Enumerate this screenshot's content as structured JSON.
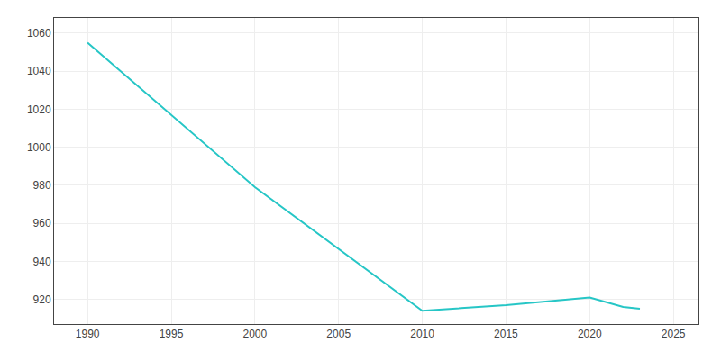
{
  "chart_data": {
    "type": "line",
    "x": [
      1990,
      2000,
      2010,
      2015,
      2020,
      2022,
      2023
    ],
    "values": [
      1055,
      979,
      914,
      917,
      921,
      916,
      915
    ],
    "color": "#26c6c6",
    "xlim": [
      1988,
      2026.5
    ],
    "ylim": [
      907,
      1068
    ],
    "xticks": [
      1990,
      1995,
      2000,
      2005,
      2010,
      2015,
      2020,
      2025
    ],
    "yticks": [
      920,
      940,
      960,
      980,
      1000,
      1020,
      1040,
      1060
    ],
    "grid": true
  }
}
